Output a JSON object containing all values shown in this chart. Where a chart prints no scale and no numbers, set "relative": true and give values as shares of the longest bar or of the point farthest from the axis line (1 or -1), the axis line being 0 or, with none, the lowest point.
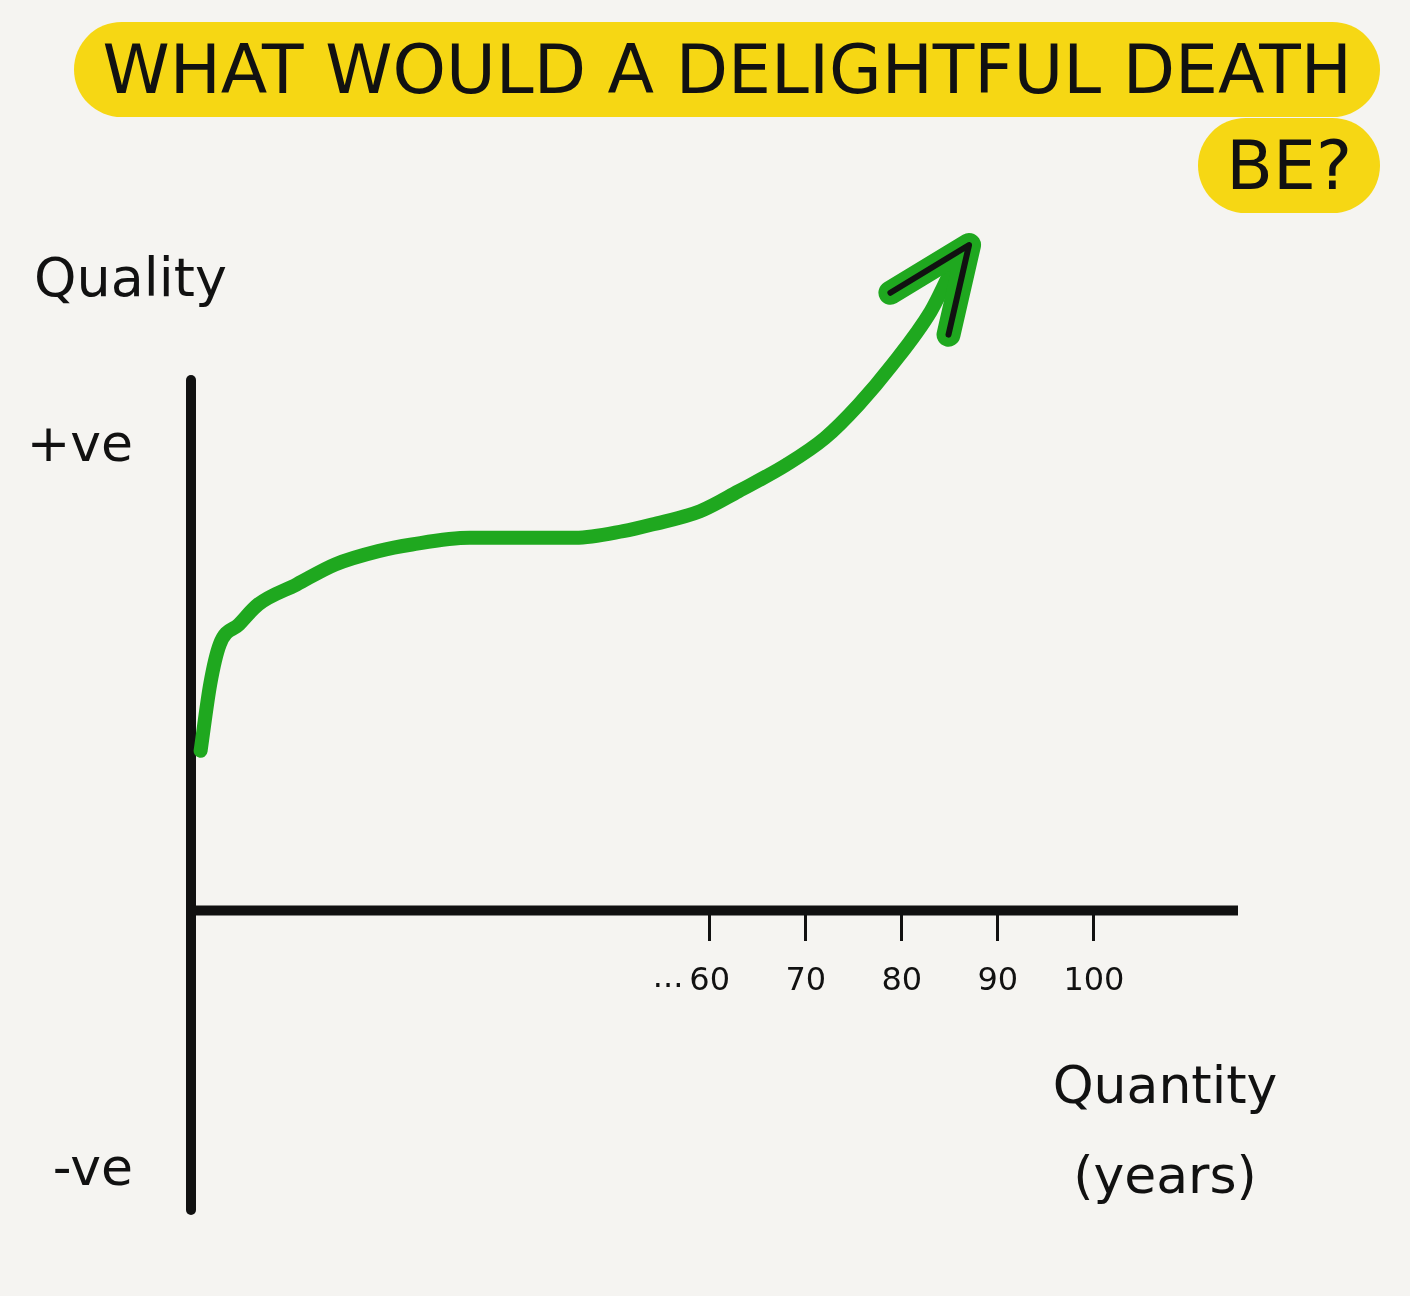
{
  "chart_data": {
    "type": "line",
    "title": "WHAT WOULD A DELIGHTFUL DEATH BE?",
    "xlabel": "Quantity (years)",
    "ylabel": "Quality",
    "annotations": [
      "+ve",
      "-ve",
      "..."
    ],
    "relative": true,
    "x": [
      7,
      8,
      9,
      11,
      13,
      17,
      21,
      25.5,
      29,
      35,
      42,
      46,
      51,
      54,
      59,
      63,
      68,
      72,
      75.5,
      79,
      83,
      85.5,
      87
    ],
    "xlim": [
      6,
      115
    ],
    "xticks": [
      60,
      70,
      80,
      90,
      100
    ],
    "series": [
      {
        "color": "#1fa81f",
        "values": [
          0.24,
          0.34,
          0.4,
          0.43,
          0.46,
          0.49,
          0.52,
          0.54,
          0.55,
          0.56,
          0.56,
          0.56,
          0.57,
          0.58,
          0.6,
          0.63,
          0.67,
          0.71,
          0.76,
          0.82,
          0.9,
          0.97,
          1
        ]
      }
    ]
  }
}
